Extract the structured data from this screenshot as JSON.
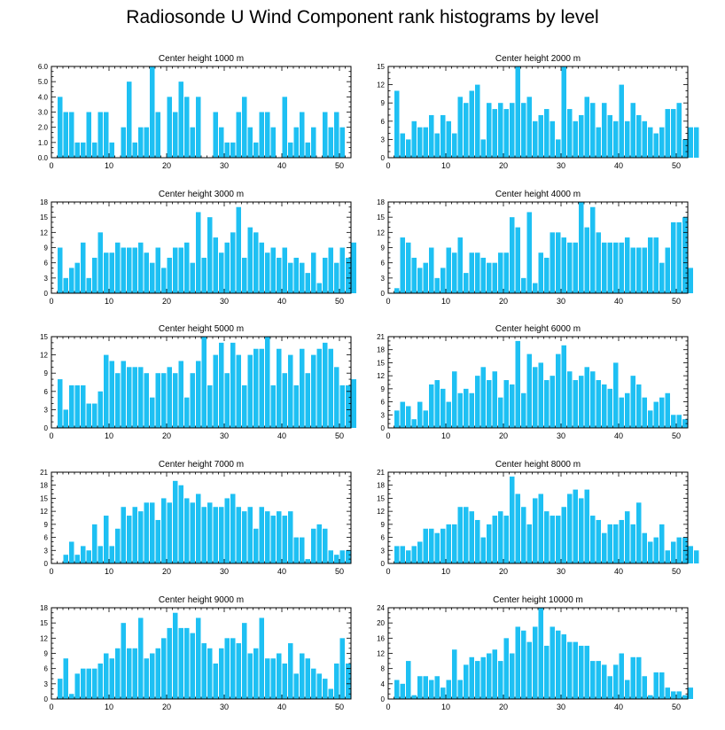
{
  "title": "Radiosonde U Wind Component rank histograms by level",
  "bar_color": "#1ec0f3",
  "chart_data": [
    {
      "type": "bar",
      "title": "Center height 1000 m",
      "ylim": [
        0,
        6
      ],
      "yticks": [
        0,
        1,
        2,
        3,
        4,
        5,
        6
      ],
      "ytick_format": 1,
      "xlim": [
        0,
        52
      ],
      "xticks": [
        0,
        10,
        20,
        30,
        40,
        50
      ],
      "values": [
        0,
        4,
        3,
        3,
        1,
        1,
        3,
        1,
        3,
        3,
        1,
        0,
        2,
        5,
        1,
        2,
        2,
        6,
        3,
        0,
        4,
        3,
        5,
        4,
        2,
        4,
        0,
        0,
        3,
        2,
        1,
        1,
        3,
        4,
        2,
        1,
        3,
        3,
        2,
        0,
        4,
        1,
        2,
        3,
        1,
        2,
        0,
        3,
        2,
        3,
        2,
        0
      ]
    },
    {
      "type": "bar",
      "title": "Center height 2000 m",
      "ylim": [
        0,
        15
      ],
      "yticks": [
        0,
        3,
        6,
        9,
        12,
        15
      ],
      "ytick_format": 0,
      "xlim": [
        0,
        52
      ],
      "xticks": [
        0,
        10,
        20,
        30,
        40,
        50
      ],
      "values": [
        0,
        11,
        4,
        3,
        6,
        5,
        5,
        7,
        4,
        7,
        6,
        4,
        10,
        9,
        11,
        12,
        3,
        9,
        8,
        9,
        8,
        9,
        15,
        9,
        10,
        6,
        7,
        8,
        6,
        3,
        15,
        8,
        6,
        7,
        10,
        9,
        5,
        9,
        7,
        6,
        12,
        6,
        9,
        7,
        6,
        5,
        4,
        5,
        8,
        8,
        9,
        3,
        5,
        5
      ]
    },
    {
      "type": "bar",
      "title": "Center height 3000 m",
      "ylim": [
        0,
        18
      ],
      "yticks": [
        0,
        3,
        6,
        9,
        12,
        15,
        18
      ],
      "ytick_format": 0,
      "xlim": [
        0,
        52
      ],
      "xticks": [
        0,
        10,
        20,
        30,
        40,
        50
      ],
      "values": [
        0,
        9,
        3,
        5,
        6,
        10,
        3,
        7,
        12,
        8,
        8,
        10,
        9,
        9,
        9,
        10,
        8,
        6,
        9,
        5,
        7,
        9,
        9,
        10,
        6,
        16,
        7,
        15,
        11,
        8,
        10,
        12,
        17,
        7,
        13,
        12,
        10,
        8,
        9,
        7,
        9,
        6,
        7,
        6,
        4,
        8,
        2,
        7,
        9,
        6,
        9,
        7,
        10
      ]
    },
    {
      "type": "bar",
      "title": "Center height 4000 m",
      "ylim": [
        0,
        18
      ],
      "yticks": [
        0,
        3,
        6,
        9,
        12,
        15,
        18
      ],
      "ytick_format": 0,
      "xlim": [
        0,
        52
      ],
      "xticks": [
        0,
        10,
        20,
        30,
        40,
        50
      ],
      "values": [
        0,
        1,
        11,
        10,
        7,
        5,
        6,
        9,
        3,
        5,
        9,
        8,
        11,
        4,
        8,
        8,
        7,
        6,
        6,
        8,
        8,
        15,
        13,
        3,
        16,
        2,
        8,
        7,
        12,
        12,
        11,
        10,
        10,
        18,
        13,
        17,
        12,
        10,
        10,
        10,
        10,
        11,
        9,
        9,
        9,
        11,
        11,
        6,
        9,
        14,
        14,
        15,
        5
      ]
    },
    {
      "type": "bar",
      "title": "Center height 5000 m",
      "ylim": [
        0,
        15
      ],
      "yticks": [
        0,
        3,
        6,
        9,
        12,
        15
      ],
      "ytick_format": 0,
      "xlim": [
        0,
        52
      ],
      "xticks": [
        0,
        10,
        20,
        30,
        40,
        50
      ],
      "values": [
        0,
        8,
        3,
        7,
        7,
        7,
        4,
        4,
        6,
        12,
        11,
        9,
        11,
        10,
        10,
        10,
        9,
        5,
        9,
        9,
        10,
        9,
        11,
        5,
        9,
        11,
        15,
        7,
        12,
        14,
        9,
        14,
        12,
        7,
        12,
        13,
        13,
        15,
        7,
        13,
        9,
        12,
        7,
        13,
        9,
        12,
        13,
        14,
        13,
        10,
        7,
        7,
        8
      ]
    },
    {
      "type": "bar",
      "title": "Center height 6000 m",
      "ylim": [
        0,
        21
      ],
      "yticks": [
        0,
        3,
        6,
        9,
        12,
        15,
        18,
        21
      ],
      "ytick_format": 0,
      "xlim": [
        0,
        52
      ],
      "xticks": [
        0,
        10,
        20,
        30,
        40,
        50
      ],
      "values": [
        0,
        4,
        6,
        5,
        2,
        6,
        4,
        10,
        11,
        9,
        6,
        13,
        8,
        9,
        8,
        12,
        14,
        11,
        13,
        7,
        11,
        10,
        20,
        8,
        17,
        14,
        15,
        11,
        12,
        17,
        19,
        13,
        11,
        12,
        14,
        13,
        11,
        10,
        9,
        15,
        7,
        8,
        12,
        10,
        7,
        4,
        6,
        7,
        8,
        3,
        3,
        2,
        0
      ]
    },
    {
      "type": "bar",
      "title": "Center height 7000 m",
      "ylim": [
        0,
        21
      ],
      "yticks": [
        0,
        3,
        6,
        9,
        12,
        15,
        18,
        21
      ],
      "ytick_format": 0,
      "xlim": [
        0,
        52
      ],
      "xticks": [
        0,
        10,
        20,
        30,
        40,
        50
      ],
      "values": [
        0,
        0,
        2,
        5,
        2,
        4,
        3,
        9,
        4,
        11,
        4,
        8,
        13,
        11,
        13,
        12,
        14,
        14,
        10,
        15,
        14,
        19,
        18,
        15,
        14,
        16,
        13,
        14,
        13,
        13,
        15,
        16,
        13,
        12,
        13,
        8,
        13,
        12,
        11,
        12,
        11,
        12,
        6,
        6,
        1,
        8,
        9,
        8,
        3,
        2,
        3,
        3,
        0
      ]
    },
    {
      "type": "bar",
      "title": "Center height 8000 m",
      "ylim": [
        0,
        21
      ],
      "yticks": [
        0,
        3,
        6,
        9,
        12,
        15,
        18,
        21
      ],
      "ytick_format": 0,
      "xlim": [
        0,
        52
      ],
      "xticks": [
        0,
        10,
        20,
        30,
        40,
        50
      ],
      "values": [
        0,
        4,
        4,
        3,
        4,
        5,
        8,
        8,
        7,
        8,
        9,
        9,
        13,
        13,
        12,
        10,
        6,
        9,
        11,
        12,
        11,
        20,
        16,
        13,
        9,
        15,
        16,
        12,
        11,
        11,
        13,
        16,
        17,
        15,
        17,
        11,
        10,
        7,
        9,
        9,
        10,
        12,
        9,
        14,
        7,
        5,
        6,
        9,
        3,
        5,
        6,
        6,
        4,
        3
      ]
    },
    {
      "type": "bar",
      "title": "Center height 9000 m",
      "ylim": [
        0,
        18
      ],
      "yticks": [
        0,
        3,
        6,
        9,
        12,
        15,
        18
      ],
      "ytick_format": 0,
      "xlim": [
        0,
        52
      ],
      "xticks": [
        0,
        10,
        20,
        30,
        40,
        50
      ],
      "values": [
        0,
        4,
        8,
        1,
        5,
        6,
        6,
        6,
        7,
        9,
        8,
        10,
        15,
        10,
        10,
        16,
        8,
        9,
        10,
        12,
        14,
        17,
        14,
        14,
        13,
        16,
        11,
        10,
        7,
        10,
        12,
        12,
        11,
        15,
        9,
        10,
        16,
        8,
        8,
        9,
        7,
        11,
        5,
        9,
        8,
        6,
        5,
        4,
        2,
        7,
        12,
        7
      ]
    },
    {
      "type": "bar",
      "title": "Center height 10000 m",
      "ylim": [
        0,
        24
      ],
      "yticks": [
        0,
        4,
        8,
        12,
        16,
        20,
        24
      ],
      "ytick_format": 0,
      "xlim": [
        0,
        52
      ],
      "xticks": [
        0,
        10,
        20,
        30,
        40,
        50
      ],
      "values": [
        0,
        5,
        4,
        10,
        1,
        6,
        6,
        5,
        6,
        3,
        5,
        13,
        5,
        9,
        11,
        10,
        11,
        12,
        13,
        10,
        16,
        12,
        19,
        18,
        15,
        19,
        24,
        14,
        19,
        18,
        17,
        15,
        15,
        14,
        14,
        10,
        10,
        9,
        6,
        9,
        12,
        5,
        11,
        11,
        6,
        1,
        7,
        7,
        3,
        2,
        2,
        1,
        3
      ]
    }
  ]
}
